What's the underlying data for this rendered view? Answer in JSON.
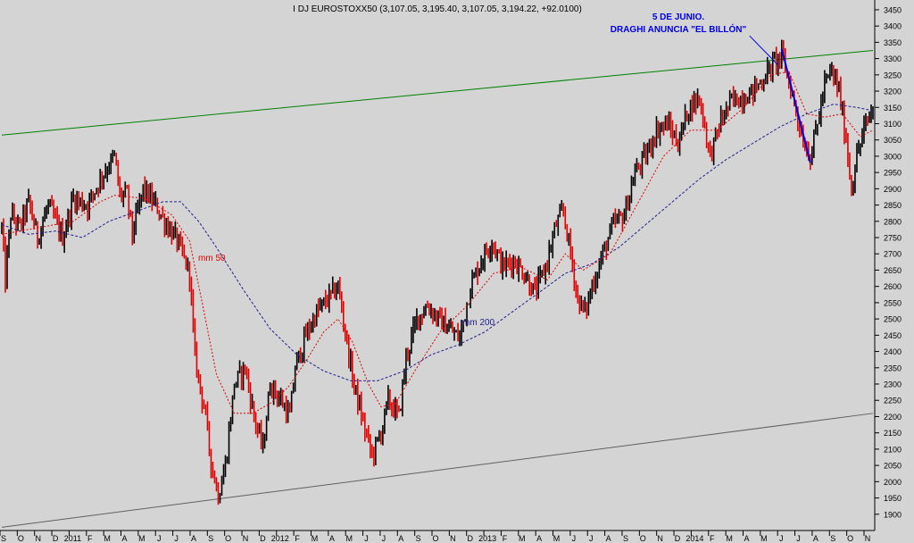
{
  "chart_data": {
    "type": "candlestick",
    "title": "I DJ EUROSTOXX50 (3,107.05, 3,195.40, 3,107.05, 3,194.22, +92.0100)",
    "annotation": {
      "line1": "5 DE JUNIO.",
      "line2": "DRAGHI ANUNCIA \"EL BILLÓN\""
    },
    "series_labels": {
      "ma50": "mm 50",
      "ma200": "mm 200"
    },
    "x_ticks": [
      "S",
      "O",
      "N",
      "D",
      "2011",
      "F",
      "M",
      "A",
      "M",
      "J",
      "J",
      "A",
      "S",
      "O",
      "N",
      "D",
      "2012",
      "F",
      "M",
      "A",
      "M",
      "J",
      "J",
      "A",
      "S",
      "O",
      "N",
      "D",
      "2013",
      "F",
      "M",
      "A",
      "M",
      "J",
      "J",
      "A",
      "S",
      "O",
      "N",
      "D",
      "2014",
      "F",
      "M",
      "A",
      "M",
      "J",
      "J",
      "A",
      "S",
      "O",
      "N"
    ],
    "y_ticks": [
      1900,
      1950,
      2000,
      2050,
      2100,
      2150,
      2200,
      2250,
      2300,
      2350,
      2400,
      2450,
      2500,
      2550,
      2600,
      2650,
      2700,
      2750,
      2800,
      2850,
      2900,
      2950,
      3000,
      3050,
      3100,
      3150,
      3200,
      3250,
      3300,
      3350,
      3400,
      3450
    ],
    "ylim": [
      1850,
      3480
    ],
    "price_path": [
      {
        "t": 0,
        "v": 2780
      },
      {
        "t": 2,
        "v": 2620
      },
      {
        "t": 5,
        "v": 2820
      },
      {
        "t": 10,
        "v": 2780
      },
      {
        "t": 15,
        "v": 2860
      },
      {
        "t": 20,
        "v": 2750
      },
      {
        "t": 26,
        "v": 2850
      },
      {
        "t": 34,
        "v": 2750
      },
      {
        "t": 40,
        "v": 2870
      },
      {
        "t": 48,
        "v": 2850
      },
      {
        "t": 56,
        "v": 2940
      },
      {
        "t": 63,
        "v": 3000
      },
      {
        "t": 66,
        "v": 2880
      },
      {
        "t": 70,
        "v": 2880
      },
      {
        "t": 73,
        "v": 2760
      },
      {
        "t": 79,
        "v": 2900
      },
      {
        "t": 86,
        "v": 2850
      },
      {
        "t": 91,
        "v": 2800
      },
      {
        "t": 98,
        "v": 2740
      },
      {
        "t": 105,
        "v": 2640
      },
      {
        "t": 108,
        "v": 2380
      },
      {
        "t": 114,
        "v": 2200
      },
      {
        "t": 117,
        "v": 2060
      },
      {
        "t": 121,
        "v": 1960
      },
      {
        "t": 125,
        "v": 2050
      },
      {
        "t": 130,
        "v": 2300
      },
      {
        "t": 136,
        "v": 2350
      },
      {
        "t": 141,
        "v": 2200
      },
      {
        "t": 146,
        "v": 2100
      },
      {
        "t": 150,
        "v": 2300
      },
      {
        "t": 156,
        "v": 2250
      },
      {
        "t": 161,
        "v": 2200
      },
      {
        "t": 164,
        "v": 2350
      },
      {
        "t": 170,
        "v": 2450
      },
      {
        "t": 176,
        "v": 2520
      },
      {
        "t": 182,
        "v": 2560
      },
      {
        "t": 188,
        "v": 2600
      },
      {
        "t": 192,
        "v": 2460
      },
      {
        "t": 196,
        "v": 2320
      },
      {
        "t": 202,
        "v": 2180
      },
      {
        "t": 207,
        "v": 2080
      },
      {
        "t": 212,
        "v": 2150
      },
      {
        "t": 216,
        "v": 2250
      },
      {
        "t": 222,
        "v": 2200
      },
      {
        "t": 226,
        "v": 2380
      },
      {
        "t": 232,
        "v": 2500
      },
      {
        "t": 238,
        "v": 2540
      },
      {
        "t": 244,
        "v": 2500
      },
      {
        "t": 250,
        "v": 2470
      },
      {
        "t": 256,
        "v": 2440
      },
      {
        "t": 262,
        "v": 2600
      },
      {
        "t": 268,
        "v": 2680
      },
      {
        "t": 274,
        "v": 2740
      },
      {
        "t": 280,
        "v": 2660
      },
      {
        "t": 286,
        "v": 2680
      },
      {
        "t": 292,
        "v": 2640
      },
      {
        "t": 298,
        "v": 2580
      },
      {
        "t": 304,
        "v": 2660
      },
      {
        "t": 310,
        "v": 2790
      },
      {
        "t": 314,
        "v": 2830
      },
      {
        "t": 318,
        "v": 2700
      },
      {
        "t": 322,
        "v": 2560
      },
      {
        "t": 326,
        "v": 2520
      },
      {
        "t": 330,
        "v": 2600
      },
      {
        "t": 336,
        "v": 2700
      },
      {
        "t": 342,
        "v": 2790
      },
      {
        "t": 348,
        "v": 2820
      },
      {
        "t": 354,
        "v": 2950
      },
      {
        "t": 360,
        "v": 3000
      },
      {
        "t": 366,
        "v": 3080
      },
      {
        "t": 372,
        "v": 3100
      },
      {
        "t": 378,
        "v": 3040
      },
      {
        "t": 384,
        "v": 3150
      },
      {
        "t": 390,
        "v": 3180
      },
      {
        "t": 396,
        "v": 3000
      },
      {
        "t": 402,
        "v": 3110
      },
      {
        "t": 408,
        "v": 3170
      },
      {
        "t": 414,
        "v": 3180
      },
      {
        "t": 420,
        "v": 3200
      },
      {
        "t": 426,
        "v": 3240
      },
      {
        "t": 432,
        "v": 3290
      },
      {
        "t": 436,
        "v": 3310
      },
      {
        "t": 440,
        "v": 3230
      },
      {
        "t": 444,
        "v": 3140
      },
      {
        "t": 448,
        "v": 3050
      },
      {
        "t": 452,
        "v": 3000
      },
      {
        "t": 456,
        "v": 3100
      },
      {
        "t": 460,
        "v": 3220
      },
      {
        "t": 464,
        "v": 3260
      },
      {
        "t": 468,
        "v": 3200
      },
      {
        "t": 472,
        "v": 3050
      },
      {
        "t": 475,
        "v": 2900
      },
      {
        "t": 478,
        "v": 3000
      },
      {
        "t": 482,
        "v": 3080
      },
      {
        "t": 487,
        "v": 3150
      }
    ],
    "ma50_path": [
      {
        "t": 0,
        "v": 2760
      },
      {
        "t": 20,
        "v": 2780
      },
      {
        "t": 40,
        "v": 2800
      },
      {
        "t": 55,
        "v": 2860
      },
      {
        "t": 63,
        "v": 2880
      },
      {
        "t": 80,
        "v": 2870
      },
      {
        "t": 95,
        "v": 2820
      },
      {
        "t": 105,
        "v": 2740
      },
      {
        "t": 112,
        "v": 2550
      },
      {
        "t": 120,
        "v": 2330
      },
      {
        "t": 130,
        "v": 2210
      },
      {
        "t": 140,
        "v": 2210
      },
      {
        "t": 150,
        "v": 2240
      },
      {
        "t": 160,
        "v": 2290
      },
      {
        "t": 170,
        "v": 2370
      },
      {
        "t": 180,
        "v": 2460
      },
      {
        "t": 188,
        "v": 2500
      },
      {
        "t": 196,
        "v": 2430
      },
      {
        "t": 205,
        "v": 2300
      },
      {
        "t": 212,
        "v": 2230
      },
      {
        "t": 220,
        "v": 2240
      },
      {
        "t": 232,
        "v": 2350
      },
      {
        "t": 245,
        "v": 2460
      },
      {
        "t": 260,
        "v": 2540
      },
      {
        "t": 275,
        "v": 2640
      },
      {
        "t": 290,
        "v": 2660
      },
      {
        "t": 305,
        "v": 2620
      },
      {
        "t": 315,
        "v": 2700
      },
      {
        "t": 325,
        "v": 2650
      },
      {
        "t": 340,
        "v": 2700
      },
      {
        "t": 355,
        "v": 2850
      },
      {
        "t": 370,
        "v": 3000
      },
      {
        "t": 385,
        "v": 3080
      },
      {
        "t": 400,
        "v": 3080
      },
      {
        "t": 415,
        "v": 3150
      },
      {
        "t": 430,
        "v": 3250
      },
      {
        "t": 440,
        "v": 3260
      },
      {
        "t": 450,
        "v": 3130
      },
      {
        "t": 460,
        "v": 3120
      },
      {
        "t": 470,
        "v": 3130
      },
      {
        "t": 480,
        "v": 3060
      },
      {
        "t": 487,
        "v": 3080
      }
    ],
    "ma200_path": [
      {
        "t": 0,
        "v": 2790
      },
      {
        "t": 15,
        "v": 2760
      },
      {
        "t": 30,
        "v": 2770
      },
      {
        "t": 45,
        "v": 2750
      },
      {
        "t": 60,
        "v": 2800
      },
      {
        "t": 75,
        "v": 2830
      },
      {
        "t": 90,
        "v": 2860
      },
      {
        "t": 100,
        "v": 2860
      },
      {
        "t": 110,
        "v": 2800
      },
      {
        "t": 120,
        "v": 2720
      },
      {
        "t": 135,
        "v": 2590
      },
      {
        "t": 150,
        "v": 2470
      },
      {
        "t": 165,
        "v": 2390
      },
      {
        "t": 180,
        "v": 2340
      },
      {
        "t": 195,
        "v": 2310
      },
      {
        "t": 210,
        "v": 2310
      },
      {
        "t": 225,
        "v": 2340
      },
      {
        "t": 240,
        "v": 2390
      },
      {
        "t": 255,
        "v": 2420
      },
      {
        "t": 270,
        "v": 2460
      },
      {
        "t": 285,
        "v": 2520
      },
      {
        "t": 300,
        "v": 2580
      },
      {
        "t": 315,
        "v": 2640
      },
      {
        "t": 330,
        "v": 2670
      },
      {
        "t": 345,
        "v": 2720
      },
      {
        "t": 360,
        "v": 2790
      },
      {
        "t": 375,
        "v": 2860
      },
      {
        "t": 390,
        "v": 2930
      },
      {
        "t": 405,
        "v": 2990
      },
      {
        "t": 420,
        "v": 3040
      },
      {
        "t": 435,
        "v": 3090
      },
      {
        "t": 450,
        "v": 3130
      },
      {
        "t": 465,
        "v": 3160
      },
      {
        "t": 478,
        "v": 3150
      },
      {
        "t": 487,
        "v": 3140
      }
    ],
    "upper_trendline": [
      {
        "t": 0,
        "v": 3065
      },
      {
        "t": 487,
        "v": 3325
      }
    ],
    "lower_trendline": [
      {
        "t": 0,
        "v": 1860
      },
      {
        "t": 487,
        "v": 2210
      }
    ],
    "event_lines": [
      [
        {
          "t": 418,
          "v": 3370
        },
        {
          "t": 434,
          "v": 3280
        }
      ],
      [
        {
          "t": 436,
          "v": 3330
        },
        {
          "t": 452,
          "v": 2980
        }
      ]
    ],
    "bars_count": 488,
    "colors": {
      "background": "#d4d4d4",
      "up_bar": "#000000",
      "down_bar": "#e00000",
      "ma50": "#e00000",
      "ma200": "#202090",
      "upper_trendline": "#008000",
      "lower_trendline": "#606060",
      "annotation": "#0000e0",
      "event_lines": "#0000e0"
    }
  }
}
